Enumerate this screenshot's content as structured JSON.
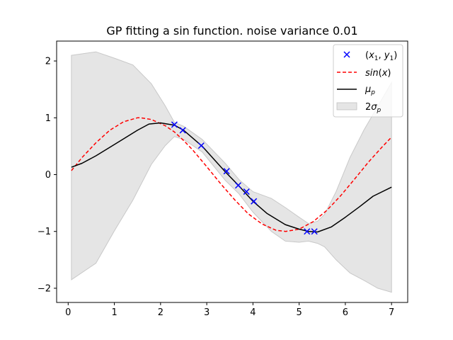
{
  "chart_data": {
    "type": "line",
    "title": "GP fitting a sin function. noise variance 0.01",
    "xlabel": "",
    "ylabel": "",
    "xlim": [
      -0.25,
      7.35
    ],
    "ylim": [
      -2.25,
      2.35
    ],
    "xticks": [
      0,
      1,
      2,
      3,
      4,
      5,
      6,
      7
    ],
    "yticks": [
      -2,
      -1,
      0,
      1,
      2
    ],
    "grid": false,
    "legend_position": "top-right",
    "colors": {
      "observations": "#0000ff",
      "sin": "#ff0000",
      "mean": "#000000",
      "band": "#d3d3d3"
    },
    "legend": [
      {
        "key": "observations",
        "label": "(x1, y1)"
      },
      {
        "key": "sin",
        "label": "sin(x)"
      },
      {
        "key": "mean",
        "label": "μp"
      },
      {
        "key": "band",
        "label": "2σp"
      }
    ],
    "observations": {
      "x": [
        2.3,
        2.48,
        2.88,
        3.43,
        3.68,
        3.86,
        4.02,
        5.17,
        5.33
      ],
      "y": [
        0.88,
        0.78,
        0.51,
        0.06,
        -0.19,
        -0.3,
        -0.47,
        -1.0,
        -1.0
      ]
    },
    "sin_curve": {
      "x": [
        0.07,
        0.3,
        0.6,
        0.9,
        1.2,
        1.5,
        1.57,
        1.8,
        2.1,
        2.3,
        2.5,
        2.7,
        3.0,
        3.3,
        3.6,
        3.9,
        4.2,
        4.5,
        4.71,
        5.0,
        5.3,
        5.6,
        5.9,
        6.2,
        6.5,
        6.8,
        7.0
      ],
      "y": [
        0.07,
        0.3,
        0.56,
        0.78,
        0.93,
        1.0,
        1.0,
        0.97,
        0.86,
        0.75,
        0.6,
        0.43,
        0.14,
        -0.16,
        -0.44,
        -0.69,
        -0.87,
        -0.98,
        -1.0,
        -0.96,
        -0.83,
        -0.63,
        -0.37,
        -0.08,
        0.22,
        0.49,
        0.66
      ]
    },
    "mean_curve": {
      "x": [
        0.07,
        0.3,
        0.6,
        0.9,
        1.2,
        1.5,
        1.75,
        2.0,
        2.3,
        2.5,
        2.9,
        3.4,
        3.7,
        4.0,
        4.3,
        4.7,
        5.0,
        5.2,
        5.4,
        5.7,
        6.0,
        6.3,
        6.6,
        7.0
      ],
      "y": [
        0.13,
        0.2,
        0.33,
        0.48,
        0.63,
        0.78,
        0.89,
        0.91,
        0.87,
        0.78,
        0.5,
        0.05,
        -0.2,
        -0.47,
        -0.68,
        -0.88,
        -0.96,
        -1.0,
        -1.01,
        -0.92,
        -0.75,
        -0.57,
        -0.38,
        -0.22
      ]
    },
    "band": {
      "x": [
        0.07,
        0.6,
        1.0,
        1.4,
        1.8,
        2.1,
        2.3,
        2.5,
        2.9,
        3.4,
        3.7,
        4.0,
        4.4,
        4.7,
        5.0,
        5.2,
        5.4,
        5.55,
        5.8,
        6.1,
        6.4,
        6.7,
        7.0
      ],
      "upper": [
        2.1,
        2.16,
        2.05,
        1.93,
        1.6,
        1.21,
        0.92,
        0.85,
        0.62,
        0.2,
        -0.09,
        -0.3,
        -0.42,
        -0.58,
        -0.75,
        -0.86,
        -0.82,
        -0.7,
        -0.3,
        0.3,
        0.78,
        1.2,
        1.62
      ],
      "lower": [
        -1.85,
        -1.56,
        -0.99,
        -0.45,
        0.18,
        0.51,
        0.67,
        0.62,
        0.4,
        -0.1,
        -0.34,
        -0.66,
        -1.0,
        -1.17,
        -1.19,
        -1.17,
        -1.21,
        -1.27,
        -1.5,
        -1.73,
        -1.86,
        -2.0,
        -2.07
      ]
    }
  }
}
